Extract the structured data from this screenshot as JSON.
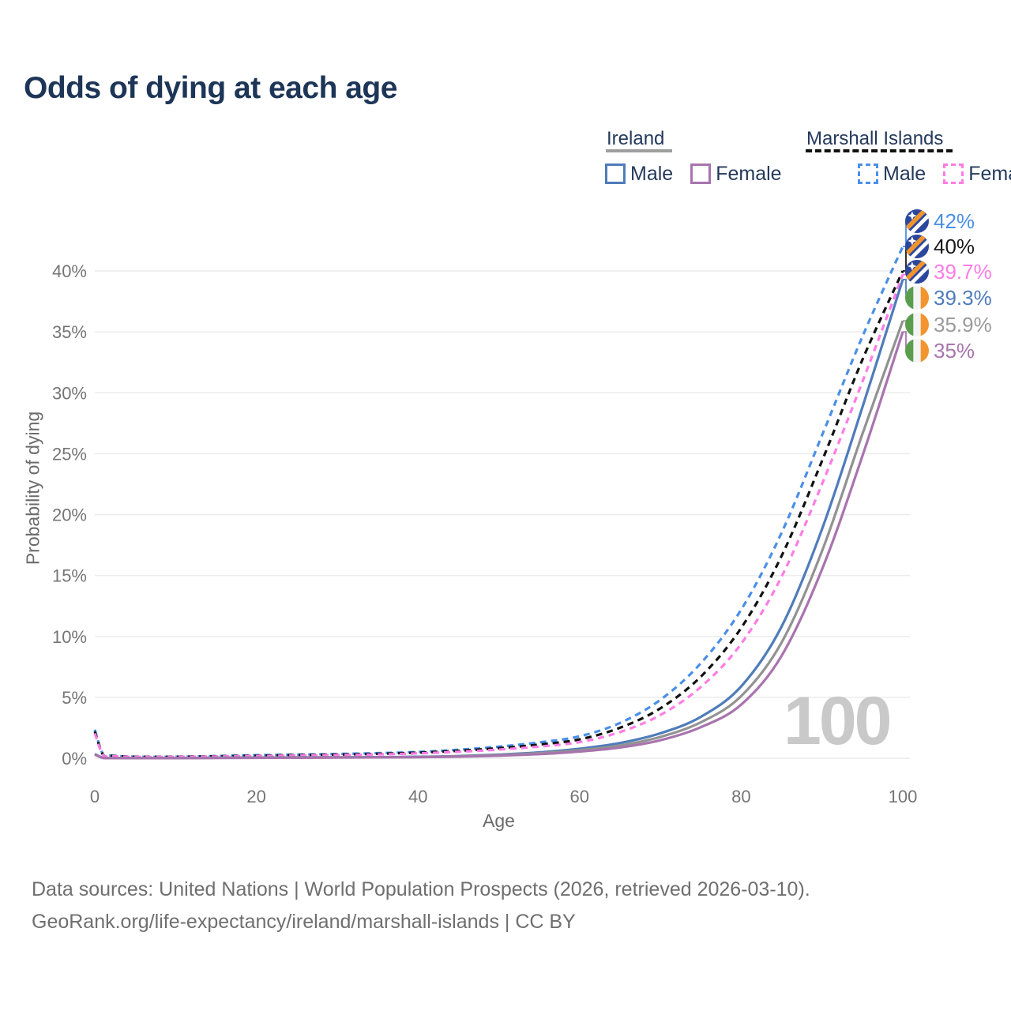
{
  "title": "Odds of dying at each age",
  "legend": {
    "ireland": {
      "title": "Ireland",
      "male": "Male",
      "female": "Female",
      "male_color": "#4f7cba",
      "female_color": "#a874ae",
      "line_color": "#9e9e9e"
    },
    "marshall": {
      "title": "Marshall Islands",
      "male": "Male",
      "female": "Female",
      "male_color": "#4a8fe8",
      "female_color": "#ff7ce5",
      "line_color": "#111111"
    }
  },
  "chart_data": {
    "type": "line",
    "title": "Odds of dying at each age",
    "xlabel": "Age",
    "ylabel": "Probability of dying",
    "xlim": [
      0,
      100
    ],
    "ylim_pct": [
      0,
      44
    ],
    "grid": "horizontal-only",
    "x_ticks": [
      "0",
      "20",
      "40",
      "60",
      "80",
      "100"
    ],
    "y_ticks": [
      "0%",
      "5%",
      "10%",
      "15%",
      "20%",
      "25%",
      "30%",
      "35%",
      "40%"
    ],
    "watermark": "100",
    "ages": [
      0,
      1,
      2,
      5,
      10,
      15,
      20,
      25,
      30,
      35,
      40,
      45,
      50,
      55,
      60,
      65,
      70,
      75,
      80,
      85,
      90,
      95,
      100
    ],
    "series": [
      {
        "name": "Marshall Islands Male",
        "style": "dashed",
        "color": "#4a8fe8",
        "values": [
          2.35,
          0.35,
          0.22,
          0.13,
          0.13,
          0.18,
          0.25,
          0.3,
          0.35,
          0.42,
          0.52,
          0.7,
          0.95,
          1.3,
          1.8,
          2.9,
          4.8,
          7.8,
          12.2,
          18.5,
          26.5,
          34.6,
          42.0
        ],
        "end_label": "42%"
      },
      {
        "name": "Marshall Islands Both sexes",
        "style": "dashed",
        "color": "#111111",
        "values": [
          2.2,
          0.32,
          0.2,
          0.12,
          0.12,
          0.16,
          0.21,
          0.26,
          0.3,
          0.36,
          0.46,
          0.61,
          0.83,
          1.12,
          1.55,
          2.5,
          4.1,
          6.7,
          10.7,
          16.6,
          24.4,
          32.7,
          40.0
        ],
        "end_label": "40%"
      },
      {
        "name": "Marshall Islands Female",
        "style": "dashed",
        "color": "#ff7ce5",
        "values": [
          2.05,
          0.3,
          0.18,
          0.11,
          0.11,
          0.14,
          0.18,
          0.22,
          0.26,
          0.31,
          0.4,
          0.53,
          0.71,
          0.96,
          1.32,
          2.15,
          3.55,
          5.85,
          9.4,
          14.9,
          22.5,
          30.9,
          39.7
        ],
        "end_label": "39.7%"
      },
      {
        "name": "Ireland Male",
        "style": "solid",
        "color": "#4f7cba",
        "values": [
          0.35,
          0.04,
          0.02,
          0.01,
          0.01,
          0.04,
          0.06,
          0.07,
          0.08,
          0.09,
          0.12,
          0.18,
          0.3,
          0.48,
          0.78,
          1.25,
          2.05,
          3.4,
          5.9,
          10.8,
          18.8,
          28.8,
          39.3
        ],
        "end_label": "39.3%"
      },
      {
        "name": "Ireland Both sexes",
        "style": "solid",
        "color": "#929292",
        "values": [
          0.32,
          0.03,
          0.02,
          0.01,
          0.01,
          0.03,
          0.05,
          0.06,
          0.07,
          0.08,
          0.1,
          0.16,
          0.26,
          0.42,
          0.66,
          1.05,
          1.75,
          2.95,
          5.1,
          9.5,
          17.0,
          26.6,
          35.9
        ],
        "end_label": "35.9%"
      },
      {
        "name": "Ireland Female",
        "style": "solid",
        "color": "#a874ae",
        "values": [
          0.3,
          0.03,
          0.015,
          0.01,
          0.01,
          0.02,
          0.03,
          0.04,
          0.05,
          0.07,
          0.09,
          0.13,
          0.21,
          0.34,
          0.55,
          0.88,
          1.48,
          2.55,
          4.4,
          8.4,
          15.5,
          24.8,
          35.0
        ],
        "end_label": "35%"
      }
    ],
    "end_labels": [
      {
        "text": "42%",
        "color": "#4a8fe8",
        "flag": "marshall-islands"
      },
      {
        "text": "40%",
        "color": "#1a1a1a",
        "flag": "marshall-islands"
      },
      {
        "text": "39.7%",
        "color": "#ff7ce5",
        "flag": "marshall-islands"
      },
      {
        "text": "39.3%",
        "color": "#4f7cba",
        "flag": "ireland"
      },
      {
        "text": "35.9%",
        "color": "#9b9b9b",
        "flag": "ireland"
      },
      {
        "text": "35%",
        "color": "#a874ae",
        "flag": "ireland"
      }
    ]
  },
  "footer": {
    "line1": "Data sources: United Nations | World Population Prospects (2026, retrieved 2026-03-10).",
    "line2": "GeoRank.org/life-expectancy/ireland/marshall-islands | CC BY"
  }
}
